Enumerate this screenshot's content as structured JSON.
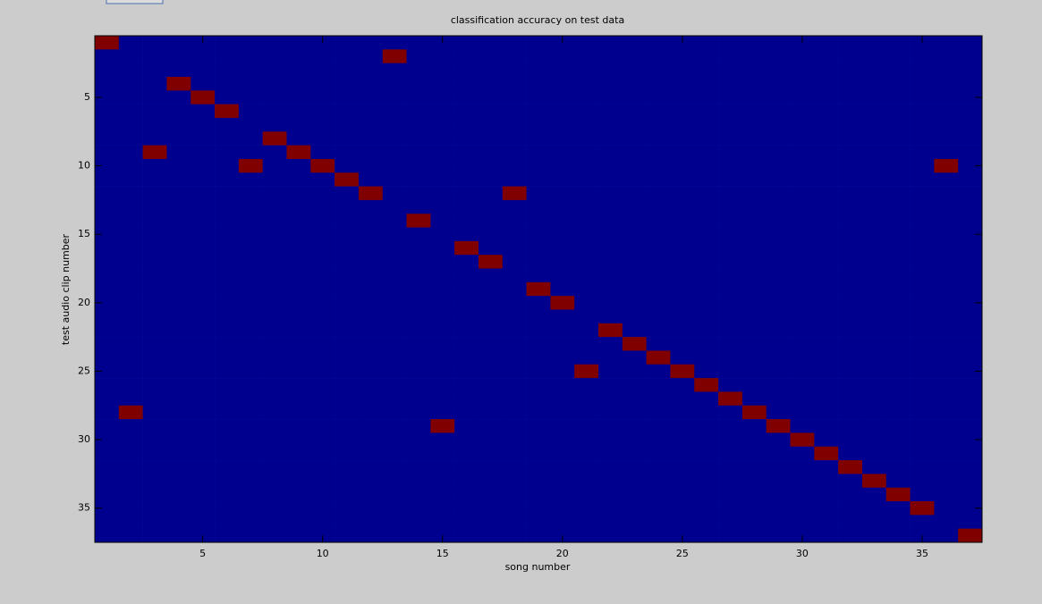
{
  "chart_data": {
    "type": "heatmap",
    "title": "classification accuracy on test data",
    "xlabel": "song number",
    "ylabel": "test audio clip number",
    "x": [
      1,
      2,
      3,
      4,
      5,
      6,
      7,
      8,
      9,
      10,
      11,
      12,
      13,
      14,
      15,
      16,
      17,
      18,
      19,
      20,
      21,
      22,
      23,
      24,
      25,
      26,
      27,
      28,
      29,
      30,
      31,
      32,
      33,
      34,
      35,
      36,
      37
    ],
    "y": [
      1,
      2,
      3,
      4,
      5,
      6,
      7,
      8,
      9,
      10,
      11,
      12,
      13,
      14,
      15,
      16,
      17,
      18,
      19,
      20,
      21,
      22,
      23,
      24,
      25,
      26,
      27,
      28,
      29,
      30,
      31,
      32,
      33,
      34,
      35,
      36,
      37
    ],
    "xlim": [
      0.5,
      37.5
    ],
    "ylim": [
      0.5,
      37.5
    ],
    "y_reversed": true,
    "xticks": [
      5,
      10,
      15,
      20,
      25,
      30,
      35
    ],
    "yticks": [
      5,
      10,
      15,
      20,
      25,
      30,
      35
    ],
    "colors": [
      "#00008f",
      "#800000"
    ],
    "z": [
      [
        1,
        0,
        0,
        0,
        0,
        0,
        0,
        0,
        0,
        0,
        0,
        0,
        0,
        0,
        0,
        0,
        0,
        0,
        0,
        0,
        0,
        0,
        0,
        0,
        0,
        0,
        0,
        0,
        0,
        0,
        0,
        0,
        0,
        0,
        0,
        0,
        0
      ],
      [
        0,
        0,
        0,
        0,
        0,
        0,
        0,
        0,
        0,
        0,
        0,
        0,
        1,
        0,
        0,
        0,
        0,
        0,
        0,
        0,
        0,
        0,
        0,
        0,
        0,
        0,
        0,
        0,
        0,
        0,
        0,
        0,
        0,
        0,
        0,
        0,
        0
      ],
      [
        0,
        0,
        0,
        0,
        0,
        0,
        0,
        0,
        0,
        0,
        0,
        0,
        0,
        0,
        0,
        0,
        0,
        0,
        0,
        0,
        0,
        0,
        0,
        0,
        0,
        0,
        0,
        0,
        0,
        0,
        0,
        0,
        0,
        0,
        0,
        0,
        0
      ],
      [
        0,
        0,
        0,
        1,
        0,
        0,
        0,
        0,
        0,
        0,
        0,
        0,
        0,
        0,
        0,
        0,
        0,
        0,
        0,
        0,
        0,
        0,
        0,
        0,
        0,
        0,
        0,
        0,
        0,
        0,
        0,
        0,
        0,
        0,
        0,
        0,
        0
      ],
      [
        0,
        0,
        0,
        0,
        1,
        0,
        0,
        0,
        0,
        0,
        0,
        0,
        0,
        0,
        0,
        0,
        0,
        0,
        0,
        0,
        0,
        0,
        0,
        0,
        0,
        0,
        0,
        0,
        0,
        0,
        0,
        0,
        0,
        0,
        0,
        0,
        0
      ],
      [
        0,
        0,
        0,
        0,
        0,
        1,
        0,
        0,
        0,
        0,
        0,
        0,
        0,
        0,
        0,
        0,
        0,
        0,
        0,
        0,
        0,
        0,
        0,
        0,
        0,
        0,
        0,
        0,
        0,
        0,
        0,
        0,
        0,
        0,
        0,
        0,
        0
      ],
      [
        0,
        0,
        0,
        0,
        0,
        0,
        0,
        0,
        0,
        0,
        0,
        0,
        0,
        0,
        0,
        0,
        0,
        0,
        0,
        0,
        0,
        0,
        0,
        0,
        0,
        0,
        0,
        0,
        0,
        0,
        0,
        0,
        0,
        0,
        0,
        0,
        0
      ],
      [
        0,
        0,
        0,
        0,
        0,
        0,
        0,
        1,
        0,
        0,
        0,
        0,
        0,
        0,
        0,
        0,
        0,
        0,
        0,
        0,
        0,
        0,
        0,
        0,
        0,
        0,
        0,
        0,
        0,
        0,
        0,
        0,
        0,
        0,
        0,
        0,
        0
      ],
      [
        0,
        0,
        1,
        0,
        0,
        0,
        0,
        0,
        1,
        0,
        0,
        0,
        0,
        0,
        0,
        0,
        0,
        0,
        0,
        0,
        0,
        0,
        0,
        0,
        0,
        0,
        0,
        0,
        0,
        0,
        0,
        0,
        0,
        0,
        0,
        0,
        0
      ],
      [
        0,
        0,
        0,
        0,
        0,
        0,
        1,
        0,
        0,
        1,
        0,
        0,
        0,
        0,
        0,
        0,
        0,
        0,
        0,
        0,
        0,
        0,
        0,
        0,
        0,
        0,
        0,
        0,
        0,
        0,
        0,
        0,
        0,
        0,
        0,
        1,
        0
      ],
      [
        0,
        0,
        0,
        0,
        0,
        0,
        0,
        0,
        0,
        0,
        1,
        0,
        0,
        0,
        0,
        0,
        0,
        0,
        0,
        0,
        0,
        0,
        0,
        0,
        0,
        0,
        0,
        0,
        0,
        0,
        0,
        0,
        0,
        0,
        0,
        0,
        0
      ],
      [
        0,
        0,
        0,
        0,
        0,
        0,
        0,
        0,
        0,
        0,
        0,
        1,
        0,
        0,
        0,
        0,
        0,
        1,
        0,
        0,
        0,
        0,
        0,
        0,
        0,
        0,
        0,
        0,
        0,
        0,
        0,
        0,
        0,
        0,
        0,
        0,
        0
      ],
      [
        0,
        0,
        0,
        0,
        0,
        0,
        0,
        0,
        0,
        0,
        0,
        0,
        0,
        0,
        0,
        0,
        0,
        0,
        0,
        0,
        0,
        0,
        0,
        0,
        0,
        0,
        0,
        0,
        0,
        0,
        0,
        0,
        0,
        0,
        0,
        0,
        0
      ],
      [
        0,
        0,
        0,
        0,
        0,
        0,
        0,
        0,
        0,
        0,
        0,
        0,
        0,
        1,
        0,
        0,
        0,
        0,
        0,
        0,
        0,
        0,
        0,
        0,
        0,
        0,
        0,
        0,
        0,
        0,
        0,
        0,
        0,
        0,
        0,
        0,
        0
      ],
      [
        0,
        0,
        0,
        0,
        0,
        0,
        0,
        0,
        0,
        0,
        0,
        0,
        0,
        0,
        0,
        0,
        0,
        0,
        0,
        0,
        0,
        0,
        0,
        0,
        0,
        0,
        0,
        0,
        0,
        0,
        0,
        0,
        0,
        0,
        0,
        0,
        0
      ],
      [
        0,
        0,
        0,
        0,
        0,
        0,
        0,
        0,
        0,
        0,
        0,
        0,
        0,
        0,
        0,
        1,
        0,
        0,
        0,
        0,
        0,
        0,
        0,
        0,
        0,
        0,
        0,
        0,
        0,
        0,
        0,
        0,
        0,
        0,
        0,
        0,
        0
      ],
      [
        0,
        0,
        0,
        0,
        0,
        0,
        0,
        0,
        0,
        0,
        0,
        0,
        0,
        0,
        0,
        0,
        1,
        0,
        0,
        0,
        0,
        0,
        0,
        0,
        0,
        0,
        0,
        0,
        0,
        0,
        0,
        0,
        0,
        0,
        0,
        0,
        0
      ],
      [
        0,
        0,
        0,
        0,
        0,
        0,
        0,
        0,
        0,
        0,
        0,
        0,
        0,
        0,
        0,
        0,
        0,
        0,
        0,
        0,
        0,
        0,
        0,
        0,
        0,
        0,
        0,
        0,
        0,
        0,
        0,
        0,
        0,
        0,
        0,
        0,
        0
      ],
      [
        0,
        0,
        0,
        0,
        0,
        0,
        0,
        0,
        0,
        0,
        0,
        0,
        0,
        0,
        0,
        0,
        0,
        0,
        1,
        0,
        0,
        0,
        0,
        0,
        0,
        0,
        0,
        0,
        0,
        0,
        0,
        0,
        0,
        0,
        0,
        0,
        0
      ],
      [
        0,
        0,
        0,
        0,
        0,
        0,
        0,
        0,
        0,
        0,
        0,
        0,
        0,
        0,
        0,
        0,
        0,
        0,
        0,
        1,
        0,
        0,
        0,
        0,
        0,
        0,
        0,
        0,
        0,
        0,
        0,
        0,
        0,
        0,
        0,
        0,
        0
      ],
      [
        0,
        0,
        0,
        0,
        0,
        0,
        0,
        0,
        0,
        0,
        0,
        0,
        0,
        0,
        0,
        0,
        0,
        0,
        0,
        0,
        0,
        0,
        0,
        0,
        0,
        0,
        0,
        0,
        0,
        0,
        0,
        0,
        0,
        0,
        0,
        0,
        0
      ],
      [
        0,
        0,
        0,
        0,
        0,
        0,
        0,
        0,
        0,
        0,
        0,
        0,
        0,
        0,
        0,
        0,
        0,
        0,
        0,
        0,
        0,
        1,
        0,
        0,
        0,
        0,
        0,
        0,
        0,
        0,
        0,
        0,
        0,
        0,
        0,
        0,
        0
      ],
      [
        0,
        0,
        0,
        0,
        0,
        0,
        0,
        0,
        0,
        0,
        0,
        0,
        0,
        0,
        0,
        0,
        0,
        0,
        0,
        0,
        0,
        0,
        1,
        0,
        0,
        0,
        0,
        0,
        0,
        0,
        0,
        0,
        0,
        0,
        0,
        0,
        0
      ],
      [
        0,
        0,
        0,
        0,
        0,
        0,
        0,
        0,
        0,
        0,
        0,
        0,
        0,
        0,
        0,
        0,
        0,
        0,
        0,
        0,
        0,
        0,
        0,
        1,
        0,
        0,
        0,
        0,
        0,
        0,
        0,
        0,
        0,
        0,
        0,
        0,
        0
      ],
      [
        0,
        0,
        0,
        0,
        0,
        0,
        0,
        0,
        0,
        0,
        0,
        0,
        0,
        0,
        0,
        0,
        0,
        0,
        0,
        0,
        1,
        0,
        0,
        0,
        1,
        0,
        0,
        0,
        0,
        0,
        0,
        0,
        0,
        0,
        0,
        0,
        0
      ],
      [
        0,
        0,
        0,
        0,
        0,
        0,
        0,
        0,
        0,
        0,
        0,
        0,
        0,
        0,
        0,
        0,
        0,
        0,
        0,
        0,
        0,
        0,
        0,
        0,
        0,
        1,
        0,
        0,
        0,
        0,
        0,
        0,
        0,
        0,
        0,
        0,
        0
      ],
      [
        0,
        0,
        0,
        0,
        0,
        0,
        0,
        0,
        0,
        0,
        0,
        0,
        0,
        0,
        0,
        0,
        0,
        0,
        0,
        0,
        0,
        0,
        0,
        0,
        0,
        0,
        1,
        0,
        0,
        0,
        0,
        0,
        0,
        0,
        0,
        0,
        0
      ],
      [
        0,
        1,
        0,
        0,
        0,
        0,
        0,
        0,
        0,
        0,
        0,
        0,
        0,
        0,
        0,
        0,
        0,
        0,
        0,
        0,
        0,
        0,
        0,
        0,
        0,
        0,
        0,
        1,
        0,
        0,
        0,
        0,
        0,
        0,
        0,
        0,
        0
      ],
      [
        0,
        0,
        0,
        0,
        0,
        0,
        0,
        0,
        0,
        0,
        0,
        0,
        0,
        0,
        1,
        0,
        0,
        0,
        0,
        0,
        0,
        0,
        0,
        0,
        0,
        0,
        0,
        0,
        1,
        0,
        0,
        0,
        0,
        0,
        0,
        0,
        0
      ],
      [
        0,
        0,
        0,
        0,
        0,
        0,
        0,
        0,
        0,
        0,
        0,
        0,
        0,
        0,
        0,
        0,
        0,
        0,
        0,
        0,
        0,
        0,
        0,
        0,
        0,
        0,
        0,
        0,
        0,
        1,
        0,
        0,
        0,
        0,
        0,
        0,
        0
      ],
      [
        0,
        0,
        0,
        0,
        0,
        0,
        0,
        0,
        0,
        0,
        0,
        0,
        0,
        0,
        0,
        0,
        0,
        0,
        0,
        0,
        0,
        0,
        0,
        0,
        0,
        0,
        0,
        0,
        0,
        0,
        1,
        0,
        0,
        0,
        0,
        0,
        0
      ],
      [
        0,
        0,
        0,
        0,
        0,
        0,
        0,
        0,
        0,
        0,
        0,
        0,
        0,
        0,
        0,
        0,
        0,
        0,
        0,
        0,
        0,
        0,
        0,
        0,
        0,
        0,
        0,
        0,
        0,
        0,
        0,
        1,
        0,
        0,
        0,
        0,
        0
      ],
      [
        0,
        0,
        0,
        0,
        0,
        0,
        0,
        0,
        0,
        0,
        0,
        0,
        0,
        0,
        0,
        0,
        0,
        0,
        0,
        0,
        0,
        0,
        0,
        0,
        0,
        0,
        0,
        0,
        0,
        0,
        0,
        0,
        1,
        0,
        0,
        0,
        0
      ],
      [
        0,
        0,
        0,
        0,
        0,
        0,
        0,
        0,
        0,
        0,
        0,
        0,
        0,
        0,
        0,
        0,
        0,
        0,
        0,
        0,
        0,
        0,
        0,
        0,
        0,
        0,
        0,
        0,
        0,
        0,
        0,
        0,
        0,
        1,
        0,
        0,
        0
      ],
      [
        0,
        0,
        0,
        0,
        0,
        0,
        0,
        0,
        0,
        0,
        0,
        0,
        0,
        0,
        0,
        0,
        0,
        0,
        0,
        0,
        0,
        0,
        0,
        0,
        0,
        0,
        0,
        0,
        0,
        0,
        0,
        0,
        0,
        0,
        1,
        0,
        0
      ],
      [
        0,
        0,
        0,
        0,
        0,
        0,
        0,
        0,
        0,
        0,
        0,
        0,
        0,
        0,
        0,
        0,
        0,
        0,
        0,
        0,
        0,
        0,
        0,
        0,
        0,
        0,
        0,
        0,
        0,
        0,
        0,
        0,
        0,
        0,
        0,
        0,
        0
      ],
      [
        0,
        0,
        0,
        0,
        0,
        0,
        0,
        0,
        0,
        0,
        0,
        0,
        0,
        0,
        0,
        0,
        0,
        0,
        0,
        0,
        0,
        0,
        0,
        0,
        0,
        0,
        0,
        0,
        0,
        0,
        0,
        0,
        0,
        0,
        0,
        0,
        1
      ]
    ]
  }
}
